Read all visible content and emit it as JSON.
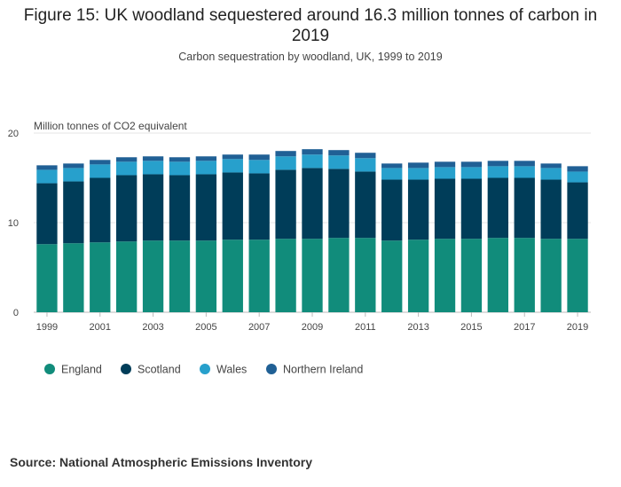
{
  "header": {
    "title": "Figure 15: UK woodland sequestered around 16.3 million tonnes of carbon in 2019",
    "subtitle": "Carbon sequestration by woodland, UK, 1999 to 2019"
  },
  "footer": {
    "source": "Source: National Atmospheric Emissions Inventory"
  },
  "chart_data": {
    "type": "bar",
    "stacked": true,
    "title": "Figure 15: UK woodland sequestered around 16.3 million tonnes of carbon in 2019",
    "subtitle": "Carbon sequestration by woodland, UK, 1999 to 2019",
    "ylabel": "Million tonnes of CO2 equivalent",
    "xlabel": "",
    "ylim": [
      0,
      20
    ],
    "yticks": [
      0,
      10,
      20
    ],
    "grid": true,
    "legend_position": "bottom-left",
    "categories": [
      "1999",
      "2000",
      "2001",
      "2002",
      "2003",
      "2004",
      "2005",
      "2006",
      "2007",
      "2008",
      "2009",
      "2010",
      "2011",
      "2012",
      "2013",
      "2014",
      "2015",
      "2016",
      "2017",
      "2018",
      "2019"
    ],
    "xtick_labels": [
      "1999",
      "2001",
      "2003",
      "2005",
      "2007",
      "2009",
      "2011",
      "2013",
      "2015",
      "2017",
      "2019"
    ],
    "series": [
      {
        "name": "England",
        "color": "#118c7b",
        "values": [
          7.6,
          7.7,
          7.8,
          7.9,
          8.0,
          8.0,
          8.0,
          8.1,
          8.1,
          8.2,
          8.2,
          8.3,
          8.3,
          8.0,
          8.1,
          8.2,
          8.2,
          8.3,
          8.3,
          8.2,
          8.2
        ]
      },
      {
        "name": "Scotland",
        "color": "#003d59",
        "values": [
          6.8,
          6.9,
          7.2,
          7.4,
          7.4,
          7.3,
          7.4,
          7.5,
          7.4,
          7.7,
          7.9,
          7.7,
          7.4,
          6.8,
          6.7,
          6.7,
          6.7,
          6.7,
          6.7,
          6.6,
          6.3
        ]
      },
      {
        "name": "Wales",
        "color": "#27a0cc",
        "values": [
          1.5,
          1.5,
          1.5,
          1.5,
          1.5,
          1.5,
          1.5,
          1.5,
          1.5,
          1.5,
          1.5,
          1.5,
          1.5,
          1.3,
          1.3,
          1.3,
          1.3,
          1.3,
          1.3,
          1.3,
          1.2
        ]
      },
      {
        "name": "Northern Ireland",
        "color": "#206095",
        "values": [
          0.5,
          0.5,
          0.5,
          0.5,
          0.5,
          0.5,
          0.5,
          0.5,
          0.6,
          0.6,
          0.6,
          0.6,
          0.6,
          0.5,
          0.6,
          0.6,
          0.6,
          0.6,
          0.6,
          0.5,
          0.6
        ]
      }
    ]
  }
}
